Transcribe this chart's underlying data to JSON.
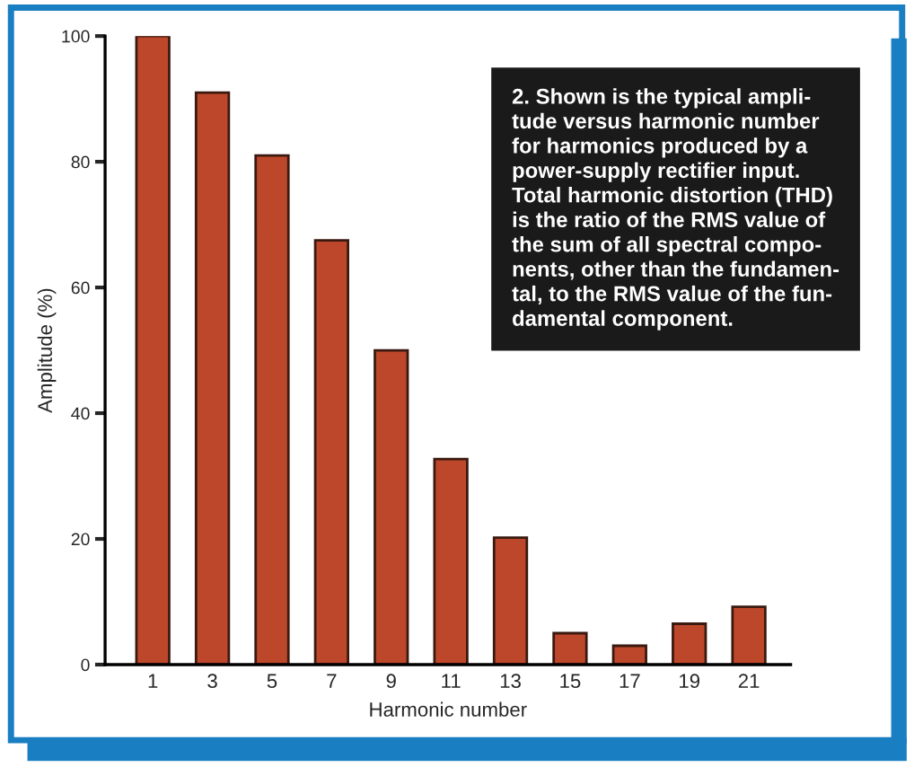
{
  "chart_data": {
    "type": "bar",
    "categories": [
      "1",
      "3",
      "5",
      "7",
      "9",
      "11",
      "13",
      "15",
      "17",
      "19",
      "21"
    ],
    "values": [
      100,
      91,
      81,
      67.5,
      50,
      32.7,
      20.2,
      5,
      3,
      6.5,
      9.2
    ],
    "color": "#bd472b",
    "xlabel": "Harmonic number",
    "ylabel": "Amplitude (%)",
    "ylim": [
      0,
      100
    ],
    "yticks": [
      0,
      20,
      40,
      60,
      80,
      100
    ],
    "grid": false,
    "annotations": [
      "2. Shown is the typical ampli-\ntude versus harmonic number\nfor harmonics produced by a\npower-supply rectifier input.\nTotal harmonic distortion (THD)\nis the ratio of the RMS value of\nthe sum of all spectral compo-\nnents, other than the fundamen-\ntal, to the RMS value of the fun-\ndamental component."
    ]
  }
}
